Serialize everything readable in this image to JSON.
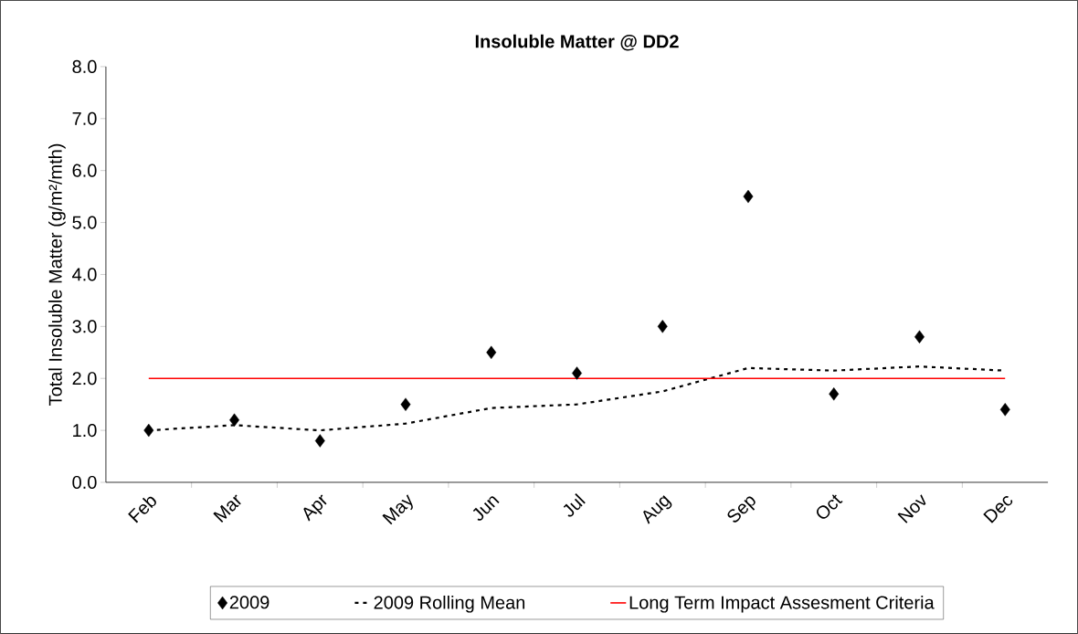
{
  "chart_data": {
    "type": "scatter",
    "title": "Insoluble Matter @ DD2",
    "ylabel": "Total Insoluble Matter (g/m²/mth)",
    "categories": [
      "Feb",
      "Mar",
      "Apr",
      "May",
      "Jun",
      "Jul",
      "Aug",
      "Sep",
      "Oct",
      "Nov",
      "Dec"
    ],
    "series": [
      {
        "name": "2009",
        "marker": "diamond",
        "color": "#000000",
        "values": [
          1.0,
          1.2,
          0.8,
          1.5,
          2.5,
          2.1,
          3.0,
          5.5,
          1.7,
          2.8,
          1.4
        ]
      },
      {
        "name": "2009 Rolling Mean",
        "type": "line",
        "marker": "none",
        "line_style": "dotted",
        "color": "#000000",
        "values": [
          1.0,
          1.1,
          1.0,
          1.13,
          1.43,
          1.5,
          1.75,
          2.2,
          2.15,
          2.23,
          2.15
        ]
      },
      {
        "name": "Long Term Impact Assesment Criteria",
        "type": "line",
        "marker": "none",
        "line_style": "solid",
        "color": "#ff0000",
        "values": [
          2.0,
          2.0,
          2.0,
          2.0,
          2.0,
          2.0,
          2.0,
          2.0,
          2.0,
          2.0,
          2.0
        ]
      }
    ],
    "ylim": [
      0,
      8
    ],
    "yticks": [
      {
        "value": 0,
        "label": "0.0"
      },
      {
        "value": 1,
        "label": "1.0"
      },
      {
        "value": 2,
        "label": "2.0"
      },
      {
        "value": 3,
        "label": "3.0"
      },
      {
        "value": 4,
        "label": "4.0"
      },
      {
        "value": 5,
        "label": "5.0"
      },
      {
        "value": 6,
        "label": "6.0"
      },
      {
        "value": 7,
        "label": "7.0"
      },
      {
        "value": 8,
        "label": "8.0"
      }
    ],
    "grid": false,
    "legend": "bottom"
  }
}
